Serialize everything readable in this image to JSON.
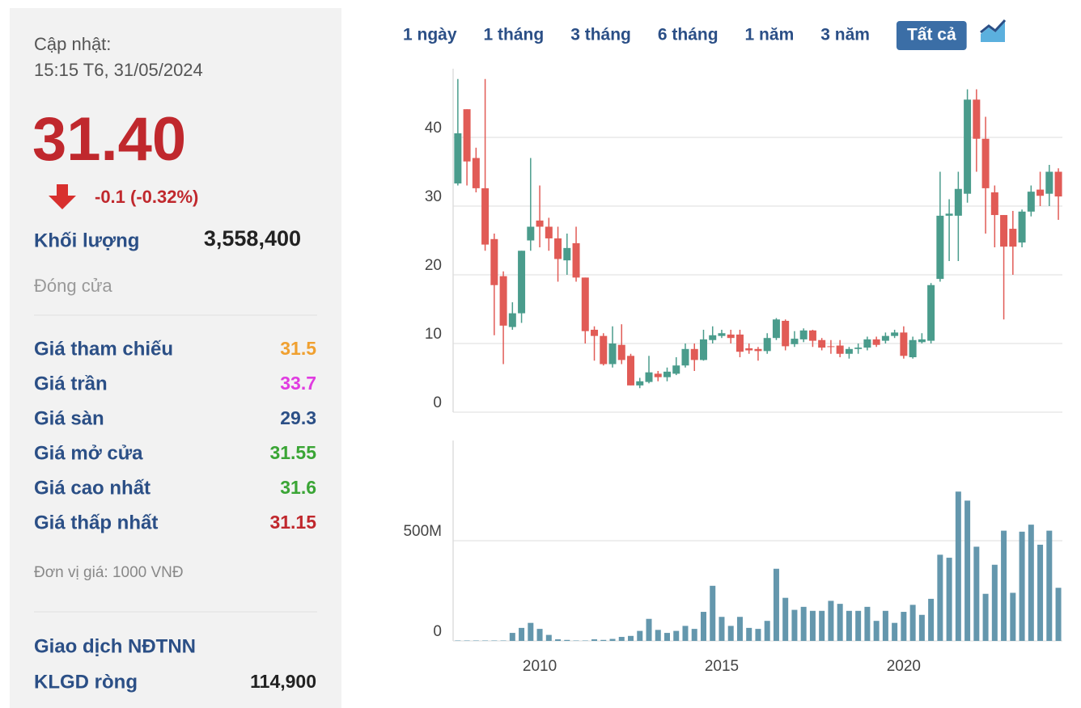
{
  "panel": {
    "update_label": "Cập nhật:",
    "update_time": "15:15 T6, 31/05/2024",
    "price": "31.40",
    "change": "-0.1 (-0.32%)",
    "volume_label": "Khối lượng",
    "volume": "3,558,400",
    "status": "Đóng cửa",
    "rows": [
      {
        "label": "Giá tham chiếu",
        "value": "31.5",
        "color": "#f0a030"
      },
      {
        "label": "Giá trần",
        "value": "33.7",
        "color": "#e03ce0"
      },
      {
        "label": "Giá sàn",
        "value": "29.3",
        "color": "#2b4f86"
      },
      {
        "label": "Giá mở cửa",
        "value": "31.55",
        "color": "#3aa535"
      },
      {
        "label": "Giá cao nhất",
        "value": "31.6",
        "color": "#3aa535"
      },
      {
        "label": "Giá thấp nhất",
        "value": "31.15",
        "color": "#c0282d"
      }
    ],
    "unit_note": "Đơn vị giá: 1000 VNĐ",
    "foreign_title": "Giao dịch NĐTNN",
    "net_label": "KLGD ròng",
    "net_value": "114,900"
  },
  "range_buttons": [
    "1 ngày",
    "1 tháng",
    "3 tháng",
    "6 tháng",
    "1 năm",
    "3 năm",
    "Tất cả"
  ],
  "selected_range": "Tất cả",
  "chart_data": [
    {
      "type": "candlestick",
      "x": [
        2007.75,
        2008,
        2008.25,
        2008.5,
        2008.75,
        2009,
        2009.25,
        2009.5,
        2009.75,
        2010,
        2010.25,
        2010.5,
        2010.75,
        2011,
        2011.25,
        2011.5,
        2011.75,
        2012,
        2012.25,
        2012.5,
        2012.75,
        2013,
        2013.25,
        2013.5,
        2013.75,
        2014,
        2014.25,
        2014.5,
        2014.75,
        2015,
        2015.25,
        2015.5,
        2015.75,
        2016,
        2016.25,
        2016.5,
        2016.75,
        2017,
        2017.25,
        2017.5,
        2017.75,
        2018,
        2018.25,
        2018.5,
        2018.75,
        2019,
        2019.25,
        2019.5,
        2019.75,
        2020,
        2020.25,
        2020.5,
        2020.75,
        2021,
        2021.25,
        2021.5,
        2021.75,
        2022,
        2022.25,
        2022.5,
        2022.75,
        2023,
        2023.25,
        2023.5,
        2023.75,
        2024,
        2024.25
      ],
      "open": [
        33.3,
        44.1,
        37,
        32.6,
        25.2,
        19.8,
        12.4,
        14.4,
        25,
        27.9,
        27,
        25.3,
        22.1,
        24.6,
        19.6,
        12,
        11.1,
        7,
        9.8,
        8.2,
        3.9,
        4.4,
        5.6,
        5.1,
        5.6,
        6.8,
        9.2,
        7.6,
        10.5,
        11.1,
        11.3,
        11.3,
        9.3,
        9.2,
        8.9,
        10.8,
        13.3,
        9.9,
        10.6,
        11.9,
        10.5,
        9.6,
        9.7,
        8.5,
        9.2,
        9.4,
        10.6,
        10.4,
        11.1,
        11.6,
        8,
        10.2,
        10.4,
        19.4,
        28.6,
        28.6,
        31.8,
        45.5,
        39.8,
        32,
        28.7,
        26.7,
        24.7,
        29.2,
        32.4,
        31.8,
        35
      ],
      "high": [
        48.5,
        44.1,
        38.5,
        48.5,
        26,
        20.5,
        16,
        23.5,
        37,
        33,
        28.3,
        27,
        26,
        27,
        19.6,
        12.5,
        11.5,
        12.5,
        12.8,
        8.5,
        5,
        8.2,
        6,
        6.5,
        8,
        10,
        10,
        12,
        12.5,
        12,
        12,
        12,
        10,
        9.5,
        11.5,
        13.7,
        13.5,
        11.8,
        12.2,
        12,
        10.8,
        10.5,
        10.5,
        9.5,
        10,
        11,
        11,
        11.6,
        12,
        12.5,
        11,
        11.5,
        18.8,
        35,
        31,
        35,
        47,
        47,
        43,
        33,
        28.7,
        29.3,
        29.5,
        33,
        35,
        36,
        35.5
      ],
      "low": [
        33,
        33,
        32,
        23.5,
        11.2,
        7,
        12,
        13,
        23.5,
        24,
        23.5,
        19,
        20,
        19,
        10,
        7.5,
        6.8,
        6.5,
        7,
        3.9,
        3.5,
        4.2,
        4.5,
        4.5,
        5.4,
        6.5,
        6,
        7.5,
        10,
        10.8,
        10,
        8,
        8.5,
        7.5,
        8.5,
        10.5,
        9,
        9.5,
        10.2,
        9.5,
        9,
        8.5,
        8,
        7.8,
        8.5,
        9,
        9.5,
        10,
        10.8,
        7.8,
        7.8,
        10,
        10,
        19,
        22,
        22,
        30.5,
        35,
        26,
        24,
        13.5,
        20,
        24,
        28.5,
        30,
        30,
        28
      ],
      "close": [
        40.6,
        36.5,
        32.6,
        24.4,
        18.5,
        12.6,
        14.4,
        23.5,
        27,
        27,
        25.3,
        22.3,
        23.9,
        19.6,
        11.8,
        11.1,
        7,
        10,
        7.6,
        3.9,
        4.5,
        5.8,
        5.1,
        5.9,
        6.8,
        9.2,
        7.6,
        10.6,
        11.2,
        11.5,
        10.8,
        8.8,
        9,
        8.9,
        10.8,
        13.5,
        9.6,
        10.7,
        11.9,
        10.4,
        9.4,
        9.5,
        8.5,
        9.2,
        9.4,
        10.6,
        9.8,
        11.1,
        11.6,
        8.2,
        10.5,
        10.6,
        18.5,
        28.6,
        28.9,
        32.5,
        45.5,
        39.8,
        32.6,
        28.7,
        24.1,
        24.1,
        29.2,
        32.1,
        31.5,
        35,
        31.4
      ],
      "up_color": "#4a9c8c",
      "down_color": "#e15b56",
      "xlim": [
        2007.62,
        2024.36
      ],
      "ylim": [
        0,
        50
      ],
      "yticks": [
        0,
        10,
        20,
        30,
        40
      ],
      "grid": true
    },
    {
      "type": "bar",
      "x": [
        2007.75,
        2008,
        2008.25,
        2008.5,
        2008.75,
        2009,
        2009.25,
        2009.5,
        2009.75,
        2010,
        2010.25,
        2010.5,
        2010.75,
        2011,
        2011.25,
        2011.5,
        2011.75,
        2012,
        2012.25,
        2012.5,
        2012.75,
        2013,
        2013.25,
        2013.5,
        2013.75,
        2014,
        2014.25,
        2014.5,
        2014.75,
        2015,
        2015.25,
        2015.5,
        2015.75,
        2016,
        2016.25,
        2016.5,
        2016.75,
        2017,
        2017.25,
        2017.5,
        2017.75,
        2018,
        2018.25,
        2018.5,
        2018.75,
        2019,
        2019.25,
        2019.5,
        2019.75,
        2020,
        2020.25,
        2020.5,
        2020.75,
        2021,
        2021.25,
        2021.5,
        2021.75,
        2022,
        2022.25,
        2022.5,
        2022.75,
        2023,
        2023.25,
        2023.5,
        2023.75,
        2024,
        2024.25
      ],
      "values": [
        2,
        2,
        2,
        2,
        2,
        2,
        40,
        65,
        90,
        60,
        30,
        8,
        5,
        2,
        2,
        8,
        5,
        10,
        20,
        25,
        50,
        110,
        55,
        40,
        50,
        75,
        60,
        145,
        275,
        120,
        75,
        120,
        65,
        60,
        100,
        360,
        215,
        155,
        170,
        150,
        150,
        200,
        185,
        150,
        150,
        170,
        100,
        150,
        90,
        145,
        180,
        130,
        210,
        430,
        415,
        745,
        700,
        470,
        235,
        380,
        550,
        240,
        545,
        580,
        480,
        550,
        265
      ],
      "color": "#6497ad",
      "xlim": [
        2007.62,
        2024.36
      ],
      "xticks": [
        2010,
        2015,
        2020
      ],
      "ylim": [
        0,
        1000
      ],
      "yticks": [
        0,
        {
          "value": 500,
          "label": "500M"
        }
      ],
      "grid": true
    }
  ]
}
